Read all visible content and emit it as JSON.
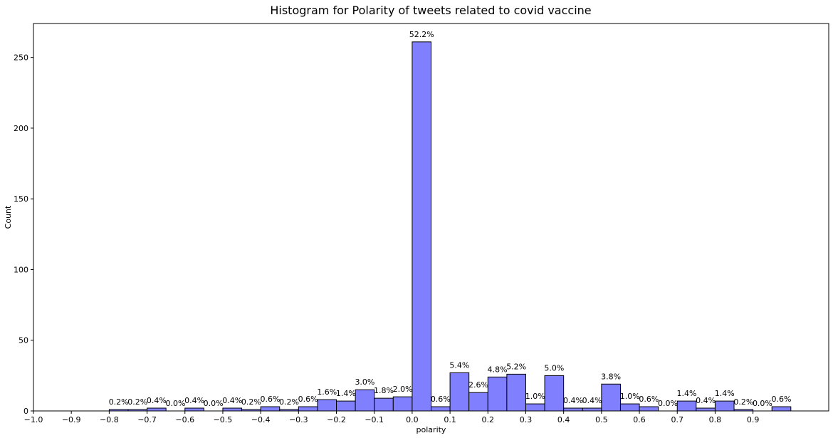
{
  "chart_data": {
    "type": "bar",
    "title": "Histogram for Polarity of tweets related to covid vaccine",
    "xlabel": "polarity",
    "ylabel": "Count",
    "xlim": [
      -1.0,
      1.1
    ],
    "ylim": [
      0,
      274
    ],
    "x_ticks": [
      "-1.0",
      "-0.9",
      "-0.8",
      "-0.7",
      "-0.6",
      "-0.5",
      "-0.4",
      "-0.3",
      "-0.2",
      "-0.1",
      "0.0",
      "0.1",
      "0.2",
      "0.3",
      "0.4",
      "0.5",
      "0.6",
      "0.7",
      "0.8",
      "0.9"
    ],
    "y_ticks": [
      "0",
      "50",
      "100",
      "150",
      "200",
      "250"
    ],
    "bin_width": 0.05,
    "bar_color": "#8080ff",
    "edge_color": "#000000",
    "bins": [
      {
        "start": -0.8,
        "count": 1,
        "label": "0.2%"
      },
      {
        "start": -0.75,
        "count": 1,
        "label": "0.2%"
      },
      {
        "start": -0.7,
        "count": 2,
        "label": "0.4%"
      },
      {
        "start": -0.65,
        "count": 0,
        "label": "0.0%"
      },
      {
        "start": -0.6,
        "count": 2,
        "label": "0.4%"
      },
      {
        "start": -0.55,
        "count": 0,
        "label": "0.0%"
      },
      {
        "start": -0.5,
        "count": 2,
        "label": "0.4%"
      },
      {
        "start": -0.45,
        "count": 1,
        "label": "0.2%"
      },
      {
        "start": -0.4,
        "count": 3,
        "label": "0.6%"
      },
      {
        "start": -0.35,
        "count": 1,
        "label": "0.2%"
      },
      {
        "start": -0.3,
        "count": 3,
        "label": "0.6%"
      },
      {
        "start": -0.25,
        "count": 8,
        "label": "1.6%"
      },
      {
        "start": -0.2,
        "count": 7,
        "label": "1.4%"
      },
      {
        "start": -0.15,
        "count": 15,
        "label": "3.0%"
      },
      {
        "start": -0.1,
        "count": 9,
        "label": "1.8%"
      },
      {
        "start": -0.05,
        "count": 10,
        "label": "2.0%"
      },
      {
        "start": 0.0,
        "count": 261,
        "label": "52.2%"
      },
      {
        "start": 0.05,
        "count": 3,
        "label": "0.6%"
      },
      {
        "start": 0.1,
        "count": 27,
        "label": "5.4%"
      },
      {
        "start": 0.15,
        "count": 13,
        "label": "2.6%"
      },
      {
        "start": 0.2,
        "count": 24,
        "label": "4.8%"
      },
      {
        "start": 0.25,
        "count": 26,
        "label": "5.2%"
      },
      {
        "start": 0.3,
        "count": 5,
        "label": "1.0%"
      },
      {
        "start": 0.35,
        "count": 25,
        "label": "5.0%"
      },
      {
        "start": 0.4,
        "count": 2,
        "label": "0.4%"
      },
      {
        "start": 0.45,
        "count": 2,
        "label": "0.4%"
      },
      {
        "start": 0.5,
        "count": 19,
        "label": "3.8%"
      },
      {
        "start": 0.55,
        "count": 5,
        "label": "1.0%"
      },
      {
        "start": 0.6,
        "count": 3,
        "label": "0.6%"
      },
      {
        "start": 0.65,
        "count": 0,
        "label": "0.0%"
      },
      {
        "start": 0.7,
        "count": 7,
        "label": "1.4%"
      },
      {
        "start": 0.75,
        "count": 2,
        "label": "0.4%"
      },
      {
        "start": 0.8,
        "count": 7,
        "label": "1.4%"
      },
      {
        "start": 0.85,
        "count": 1,
        "label": "0.2%"
      },
      {
        "start": 0.9,
        "count": 0,
        "label": "0.0%"
      },
      {
        "start": 0.95,
        "count": 3,
        "label": "0.6%"
      }
    ]
  }
}
